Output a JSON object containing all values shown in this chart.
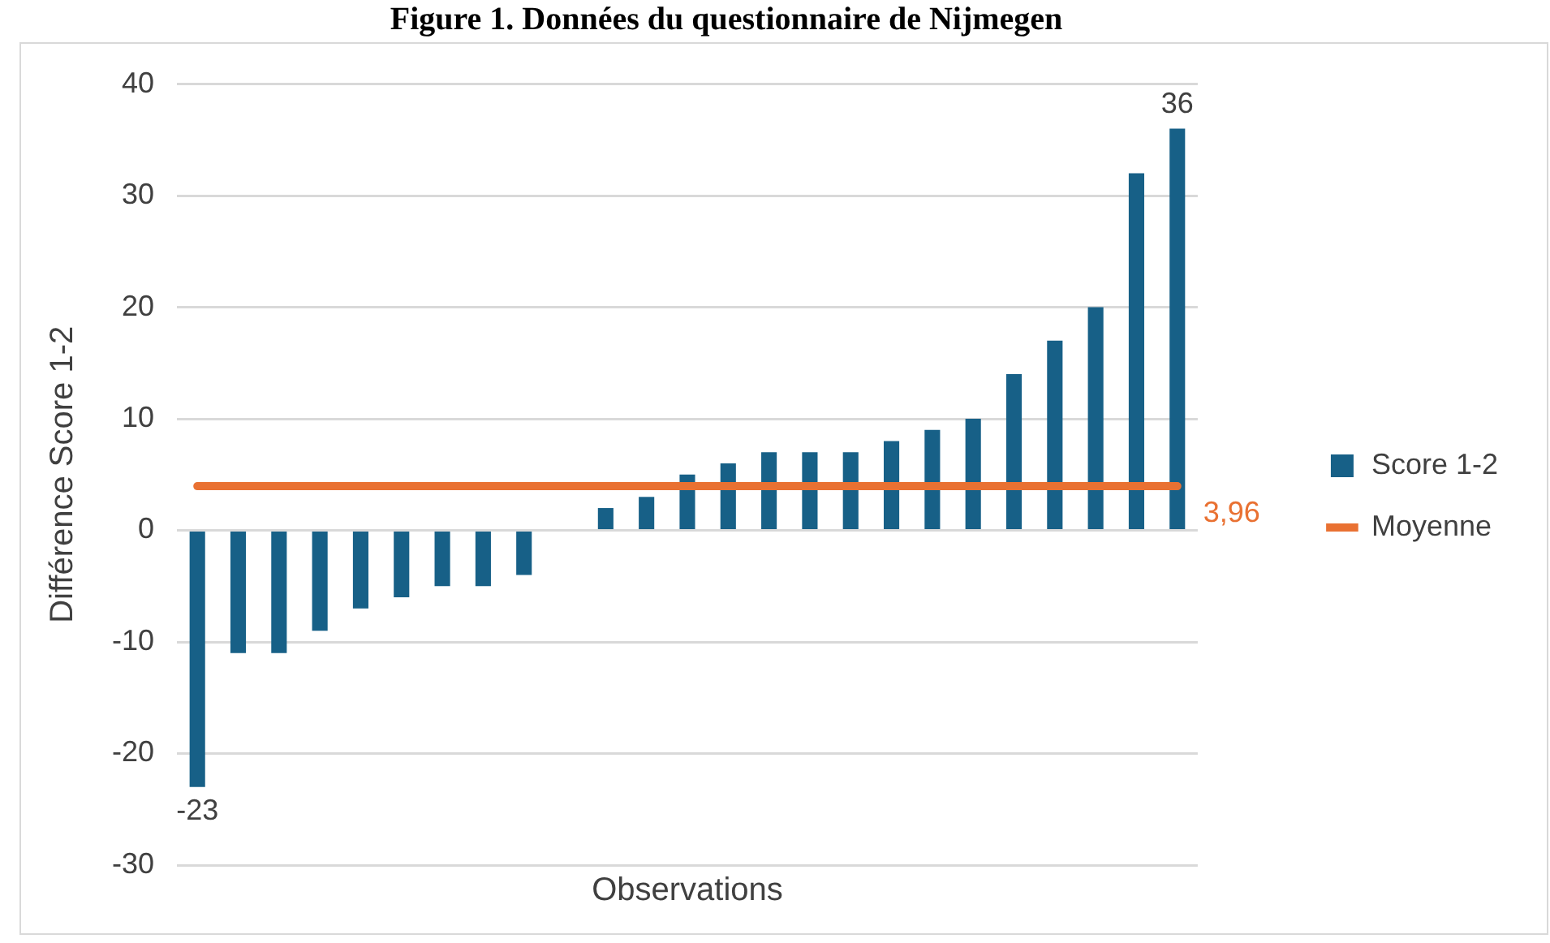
{
  "chart_data": {
    "type": "bar",
    "title": "Figure 1.  Données du questionnaire de Nijmegen",
    "xlabel": "Observations",
    "ylabel": "Différence Score 1-2",
    "categories": [
      null,
      null,
      null,
      null,
      null,
      null,
      null,
      null,
      null,
      null,
      null,
      null,
      null,
      null,
      null,
      null,
      null,
      null,
      null,
      null,
      null,
      null,
      null,
      null,
      null
    ],
    "series": [
      {
        "name": "Score 1-2",
        "color": "#176087",
        "values": [
          -23,
          -11,
          -11,
          -9,
          -7,
          -6,
          -5,
          -5,
          -4,
          0,
          2,
          3,
          5,
          6,
          7,
          7,
          7,
          8,
          9,
          10,
          14,
          17,
          20,
          32,
          36
        ],
        "value_labels": [
          "-23",
          null,
          null,
          null,
          null,
          null,
          null,
          null,
          null,
          null,
          null,
          null,
          null,
          null,
          null,
          null,
          null,
          null,
          null,
          null,
          null,
          null,
          null,
          null,
          "36"
        ]
      },
      {
        "name": "Moyenne",
        "type": "line",
        "color": "#e97132",
        "values": [
          3.96,
          3.96,
          3.96,
          3.96,
          3.96,
          3.96,
          3.96,
          3.96,
          3.96,
          3.96,
          3.96,
          3.96,
          3.96,
          3.96,
          3.96,
          3.96,
          3.96,
          3.96,
          3.96,
          3.96,
          3.96,
          3.96,
          3.96,
          3.96,
          3.96
        ],
        "value_labels": [
          null,
          null,
          null,
          null,
          null,
          null,
          null,
          null,
          null,
          null,
          null,
          null,
          null,
          null,
          null,
          null,
          null,
          null,
          null,
          null,
          null,
          null,
          null,
          null,
          "3,96"
        ]
      }
    ],
    "ylim": [
      -30,
      40
    ],
    "yticks": [
      -30,
      -20,
      -10,
      0,
      10,
      20,
      30,
      40
    ],
    "grid": "y",
    "legend": "right",
    "tick_labels": "y",
    "marker": "none"
  }
}
